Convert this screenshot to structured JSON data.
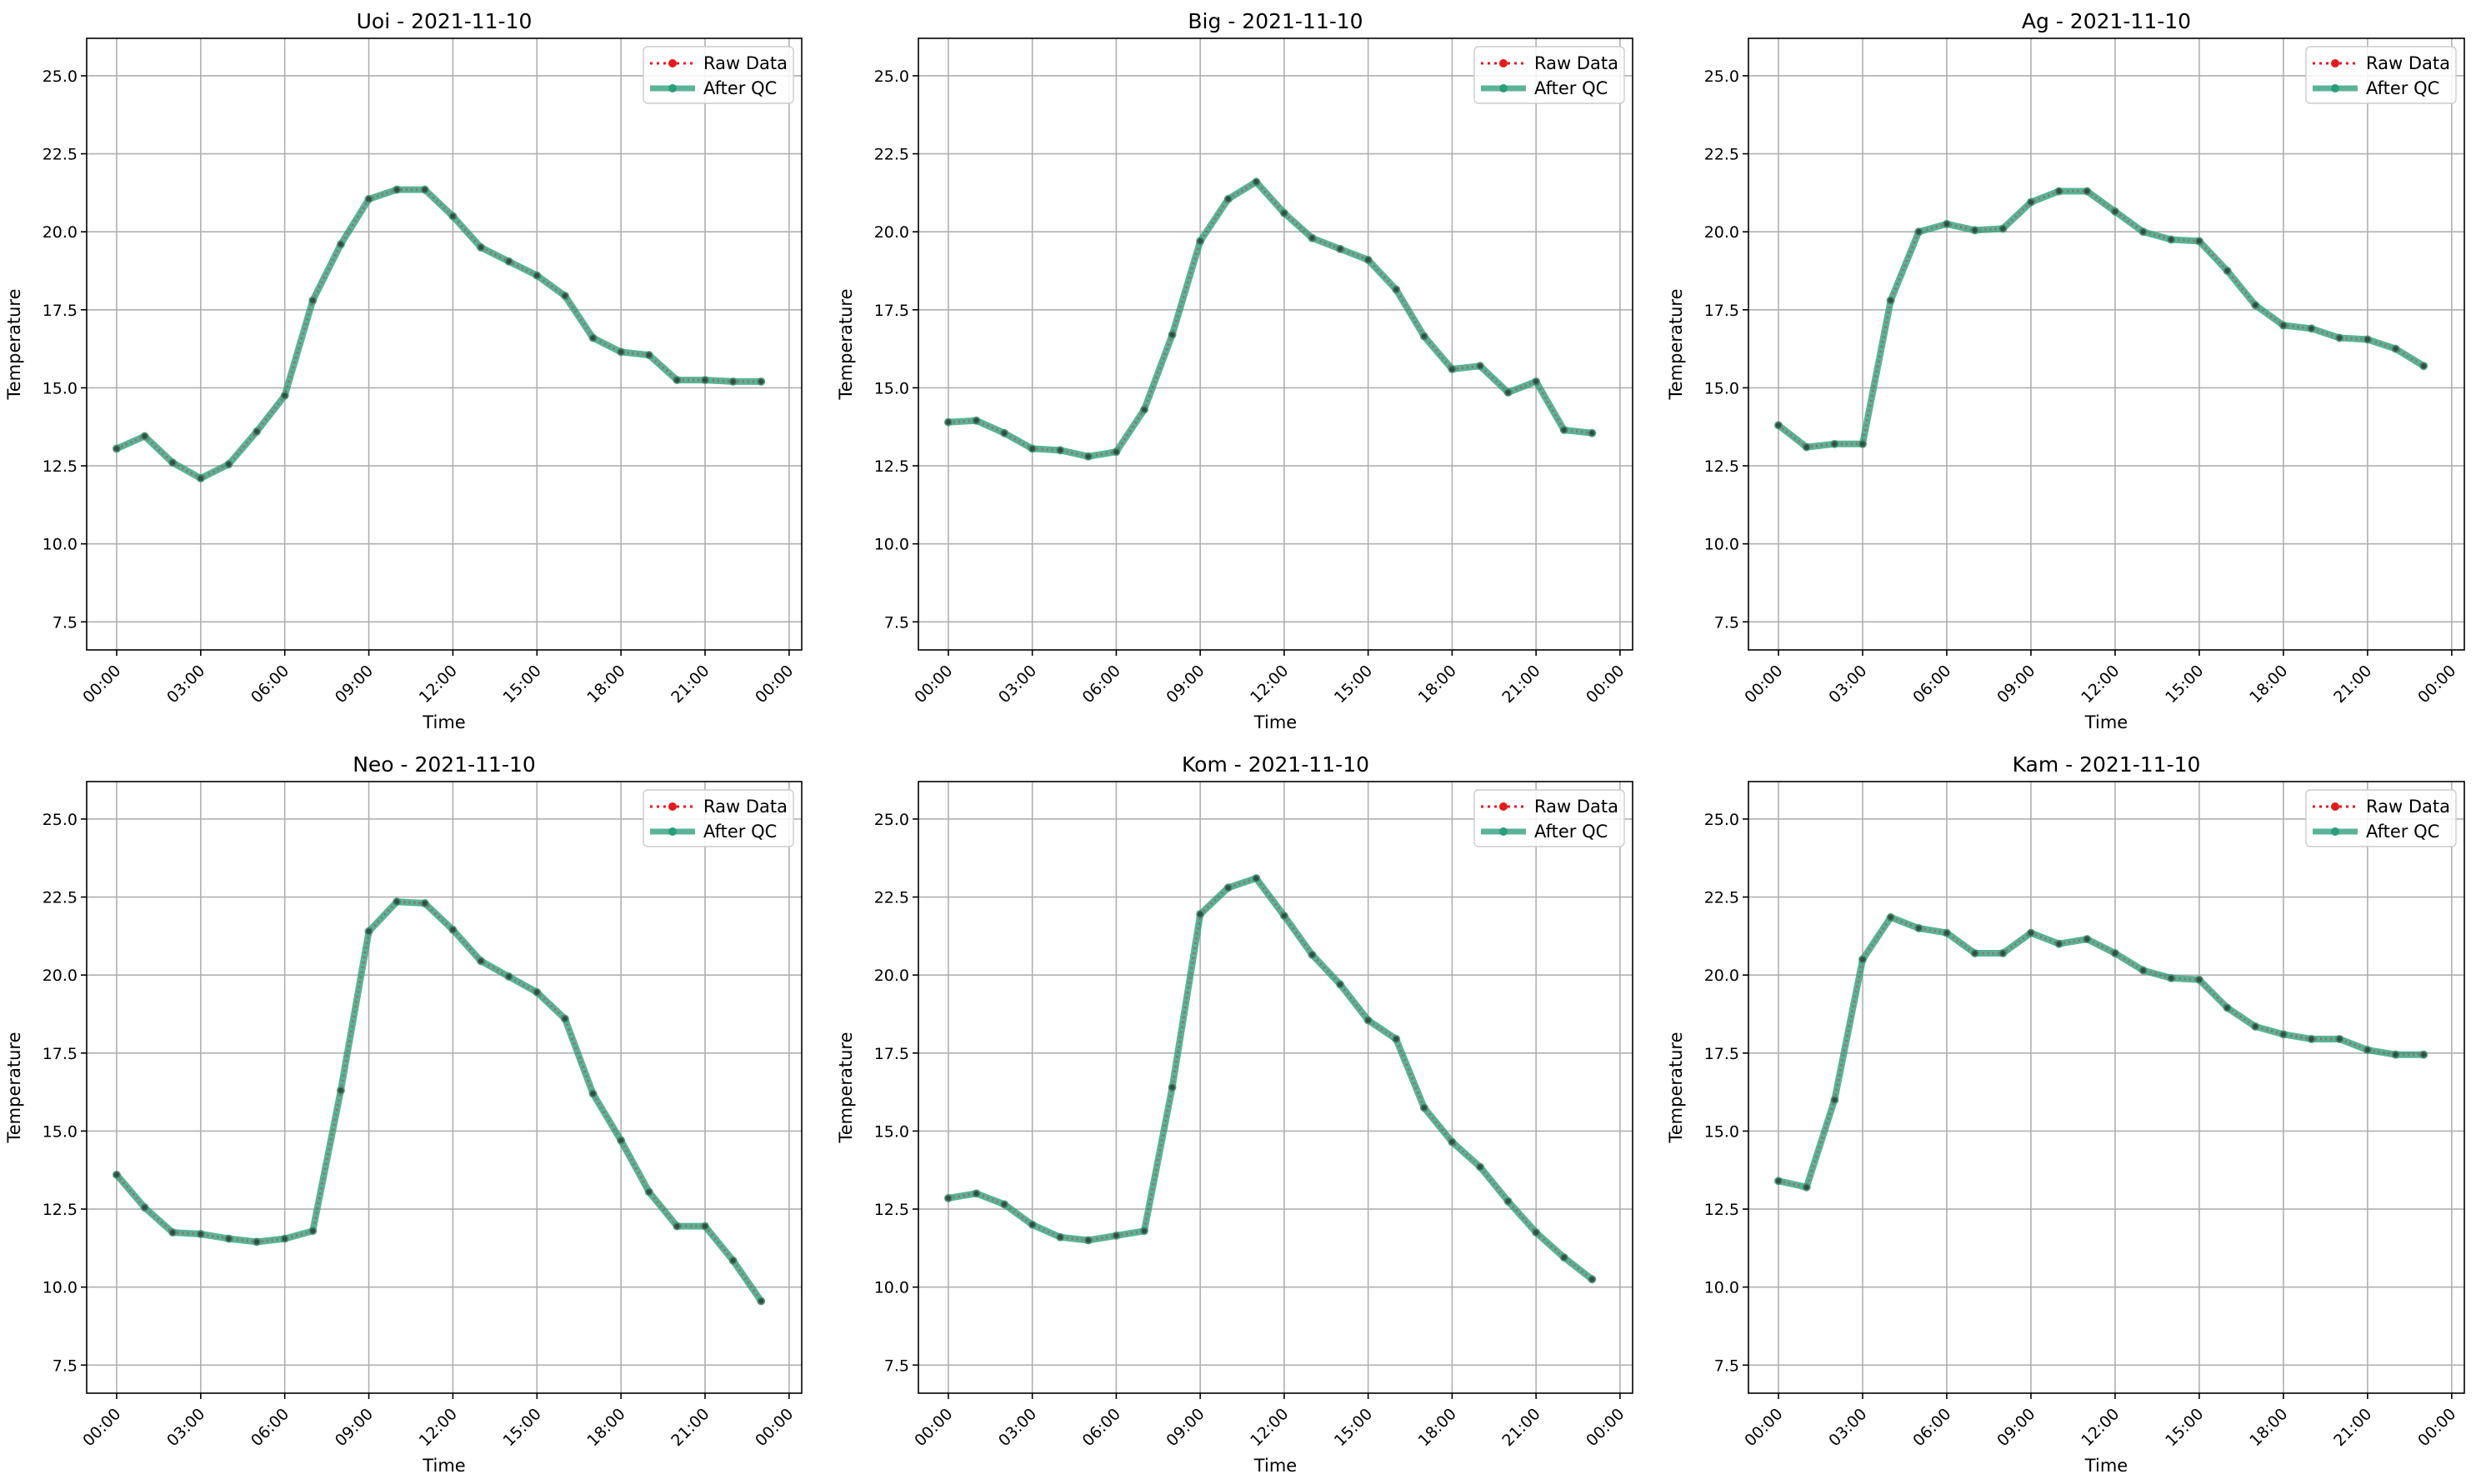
{
  "chart_data": [
    {
      "type": "line",
      "title": "Uoi - 2021-11-10",
      "xlabel": "Time",
      "ylabel": "Temperature",
      "x_ticks": [
        "00:00",
        "03:00",
        "06:00",
        "09:00",
        "12:00",
        "15:00",
        "18:00",
        "21:00",
        "00:00"
      ],
      "y_ticks": [
        "7.5",
        "10.0",
        "12.5",
        "15.0",
        "17.5",
        "20.0",
        "22.5",
        "25.0"
      ],
      "ylim": [
        6.6,
        26.2
      ],
      "grid": true,
      "legend_position": "top-right",
      "x": [
        "00:00",
        "01:00",
        "02:00",
        "03:00",
        "04:00",
        "05:00",
        "06:00",
        "07:00",
        "08:00",
        "09:00",
        "10:00",
        "11:00",
        "12:00",
        "13:00",
        "14:00",
        "15:00",
        "16:00",
        "17:00",
        "18:00",
        "19:00",
        "20:00",
        "21:00",
        "22:00",
        "23:00"
      ],
      "series": [
        {
          "name": "Raw Data",
          "color": "#e41a1c",
          "values": [
            13.05,
            13.45,
            12.6,
            12.1,
            12.55,
            13.6,
            14.75,
            17.8,
            19.6,
            21.05,
            21.35,
            21.35,
            20.5,
            19.5,
            19.05,
            18.6,
            17.95,
            16.6,
            16.15,
            16.05,
            15.25,
            15.25,
            15.2,
            15.2
          ]
        },
        {
          "name": "After QC",
          "color": "#2a9d7a",
          "values": [
            13.05,
            13.45,
            12.6,
            12.1,
            12.55,
            13.6,
            14.75,
            17.8,
            19.6,
            21.05,
            21.35,
            21.35,
            20.5,
            19.5,
            19.05,
            18.6,
            17.95,
            16.6,
            16.15,
            16.05,
            15.25,
            15.25,
            15.2,
            15.2
          ]
        }
      ]
    },
    {
      "type": "line",
      "title": "Big - 2021-11-10",
      "xlabel": "Time",
      "ylabel": "Temperature",
      "x_ticks": [
        "00:00",
        "03:00",
        "06:00",
        "09:00",
        "12:00",
        "15:00",
        "18:00",
        "21:00",
        "00:00"
      ],
      "y_ticks": [
        "7.5",
        "10.0",
        "12.5",
        "15.0",
        "17.5",
        "20.0",
        "22.5",
        "25.0"
      ],
      "ylim": [
        6.6,
        26.2
      ],
      "grid": true,
      "legend_position": "top-right",
      "x": [
        "00:00",
        "01:00",
        "02:00",
        "03:00",
        "04:00",
        "05:00",
        "06:00",
        "07:00",
        "08:00",
        "09:00",
        "10:00",
        "11:00",
        "12:00",
        "13:00",
        "14:00",
        "15:00",
        "16:00",
        "17:00",
        "18:00",
        "19:00",
        "20:00",
        "21:00",
        "22:00",
        "23:00"
      ],
      "series": [
        {
          "name": "Raw Data",
          "color": "#e41a1c",
          "values": [
            13.9,
            13.95,
            13.55,
            13.05,
            13.0,
            12.8,
            12.95,
            14.3,
            16.7,
            19.7,
            21.05,
            21.6,
            20.6,
            19.8,
            19.45,
            19.1,
            18.15,
            16.65,
            15.6,
            15.7,
            14.85,
            15.2,
            13.65,
            13.55
          ]
        },
        {
          "name": "After QC",
          "color": "#2a9d7a",
          "values": [
            13.9,
            13.95,
            13.55,
            13.05,
            13.0,
            12.8,
            12.95,
            14.3,
            16.7,
            19.7,
            21.05,
            21.6,
            20.6,
            19.8,
            19.45,
            19.1,
            18.15,
            16.65,
            15.6,
            15.7,
            14.85,
            15.2,
            13.65,
            13.55
          ]
        }
      ]
    },
    {
      "type": "line",
      "title": "Ag - 2021-11-10",
      "xlabel": "Time",
      "ylabel": "Temperature",
      "x_ticks": [
        "00:00",
        "03:00",
        "06:00",
        "09:00",
        "12:00",
        "15:00",
        "18:00",
        "21:00",
        "00:00"
      ],
      "y_ticks": [
        "7.5",
        "10.0",
        "12.5",
        "15.0",
        "17.5",
        "20.0",
        "22.5",
        "25.0"
      ],
      "ylim": [
        6.6,
        26.2
      ],
      "grid": true,
      "legend_position": "top-right",
      "x": [
        "00:00",
        "01:00",
        "02:00",
        "03:00",
        "04:00",
        "05:00",
        "06:00",
        "07:00",
        "08:00",
        "09:00",
        "10:00",
        "11:00",
        "12:00",
        "13:00",
        "14:00",
        "15:00",
        "16:00",
        "17:00",
        "18:00",
        "19:00",
        "20:00",
        "21:00",
        "22:00",
        "23:00"
      ],
      "series": [
        {
          "name": "Raw Data",
          "color": "#e41a1c",
          "values": [
            13.8,
            13.1,
            13.2,
            13.2,
            17.8,
            20.0,
            20.25,
            20.05,
            20.1,
            20.95,
            21.3,
            21.3,
            20.65,
            20.0,
            19.75,
            19.7,
            18.75,
            17.65,
            17.0,
            16.9,
            16.6,
            16.55,
            16.25,
            15.7
          ]
        },
        {
          "name": "After QC",
          "color": "#2a9d7a",
          "values": [
            13.8,
            13.1,
            13.2,
            13.2,
            17.8,
            20.0,
            20.25,
            20.05,
            20.1,
            20.95,
            21.3,
            21.3,
            20.65,
            20.0,
            19.75,
            19.7,
            18.75,
            17.65,
            17.0,
            16.9,
            16.6,
            16.55,
            16.25,
            15.7
          ]
        }
      ]
    },
    {
      "type": "line",
      "title": "Neo - 2021-11-10",
      "xlabel": "Time",
      "ylabel": "Temperature",
      "x_ticks": [
        "00:00",
        "03:00",
        "06:00",
        "09:00",
        "12:00",
        "15:00",
        "18:00",
        "21:00",
        "00:00"
      ],
      "y_ticks": [
        "7.5",
        "10.0",
        "12.5",
        "15.0",
        "17.5",
        "20.0",
        "22.5",
        "25.0"
      ],
      "ylim": [
        6.6,
        26.2
      ],
      "grid": true,
      "legend_position": "top-right",
      "x": [
        "00:00",
        "01:00",
        "02:00",
        "03:00",
        "04:00",
        "05:00",
        "06:00",
        "07:00",
        "08:00",
        "09:00",
        "10:00",
        "11:00",
        "12:00",
        "13:00",
        "14:00",
        "15:00",
        "16:00",
        "17:00",
        "18:00",
        "19:00",
        "20:00",
        "21:00",
        "22:00",
        "23:00"
      ],
      "series": [
        {
          "name": "Raw Data",
          "color": "#e41a1c",
          "values": [
            13.6,
            12.55,
            11.75,
            11.7,
            11.55,
            11.45,
            11.55,
            11.8,
            16.3,
            21.4,
            22.35,
            22.3,
            21.45,
            20.45,
            19.95,
            19.45,
            18.6,
            16.2,
            14.7,
            13.05,
            11.95,
            11.95,
            10.85,
            9.55
          ]
        },
        {
          "name": "After QC",
          "color": "#2a9d7a",
          "values": [
            13.6,
            12.55,
            11.75,
            11.7,
            11.55,
            11.45,
            11.55,
            11.8,
            16.3,
            21.4,
            22.35,
            22.3,
            21.45,
            20.45,
            19.95,
            19.45,
            18.6,
            16.2,
            14.7,
            13.05,
            11.95,
            11.95,
            10.85,
            9.55
          ]
        }
      ]
    },
    {
      "type": "line",
      "title": "Kom - 2021-11-10",
      "xlabel": "Time",
      "ylabel": "Temperature",
      "x_ticks": [
        "00:00",
        "03:00",
        "06:00",
        "09:00",
        "12:00",
        "15:00",
        "18:00",
        "21:00",
        "00:00"
      ],
      "y_ticks": [
        "7.5",
        "10.0",
        "12.5",
        "15.0",
        "17.5",
        "20.0",
        "22.5",
        "25.0"
      ],
      "ylim": [
        6.6,
        26.2
      ],
      "grid": true,
      "legend_position": "top-right",
      "x": [
        "00:00",
        "01:00",
        "02:00",
        "03:00",
        "04:00",
        "05:00",
        "06:00",
        "07:00",
        "08:00",
        "09:00",
        "10:00",
        "11:00",
        "12:00",
        "13:00",
        "14:00",
        "15:00",
        "16:00",
        "17:00",
        "18:00",
        "19:00",
        "20:00",
        "21:00",
        "22:00",
        "23:00"
      ],
      "series": [
        {
          "name": "Raw Data",
          "color": "#e41a1c",
          "values": [
            12.85,
            13.0,
            12.65,
            12.0,
            11.6,
            11.5,
            11.65,
            11.8,
            16.4,
            21.95,
            22.8,
            23.1,
            21.9,
            20.65,
            19.7,
            18.55,
            17.95,
            15.75,
            14.65,
            13.85,
            12.75,
            11.75,
            10.95,
            10.25
          ]
        },
        {
          "name": "After QC",
          "color": "#2a9d7a",
          "values": [
            12.85,
            13.0,
            12.65,
            12.0,
            11.6,
            11.5,
            11.65,
            11.8,
            16.4,
            21.95,
            22.8,
            23.1,
            21.9,
            20.65,
            19.7,
            18.55,
            17.95,
            15.75,
            14.65,
            13.85,
            12.75,
            11.75,
            10.95,
            10.25
          ]
        }
      ]
    },
    {
      "type": "line",
      "title": "Kam - 2021-11-10",
      "xlabel": "Time",
      "ylabel": "Temperature",
      "x_ticks": [
        "00:00",
        "03:00",
        "06:00",
        "09:00",
        "12:00",
        "15:00",
        "18:00",
        "21:00",
        "00:00"
      ],
      "y_ticks": [
        "7.5",
        "10.0",
        "12.5",
        "15.0",
        "17.5",
        "20.0",
        "22.5",
        "25.0"
      ],
      "ylim": [
        6.6,
        26.2
      ],
      "grid": true,
      "legend_position": "top-right",
      "x": [
        "00:00",
        "01:00",
        "02:00",
        "03:00",
        "04:00",
        "05:00",
        "06:00",
        "07:00",
        "08:00",
        "09:00",
        "10:00",
        "11:00",
        "12:00",
        "13:00",
        "14:00",
        "15:00",
        "16:00",
        "17:00",
        "18:00",
        "19:00",
        "20:00",
        "21:00",
        "22:00",
        "23:00"
      ],
      "series": [
        {
          "name": "Raw Data",
          "color": "#e41a1c",
          "values": [
            13.4,
            13.2,
            16.0,
            20.5,
            21.85,
            21.5,
            21.35,
            20.7,
            20.7,
            21.35,
            21.0,
            21.15,
            20.7,
            20.15,
            19.9,
            19.85,
            18.95,
            18.35,
            18.1,
            17.95,
            17.95,
            17.6,
            17.45,
            17.45
          ]
        },
        {
          "name": "After QC",
          "color": "#2a9d7a",
          "values": [
            13.4,
            13.2,
            16.0,
            20.5,
            21.85,
            21.5,
            21.35,
            20.7,
            20.7,
            21.35,
            21.0,
            21.15,
            20.7,
            20.15,
            19.9,
            19.85,
            18.95,
            18.35,
            18.1,
            17.95,
            17.95,
            17.6,
            17.45,
            17.45
          ]
        }
      ]
    }
  ]
}
